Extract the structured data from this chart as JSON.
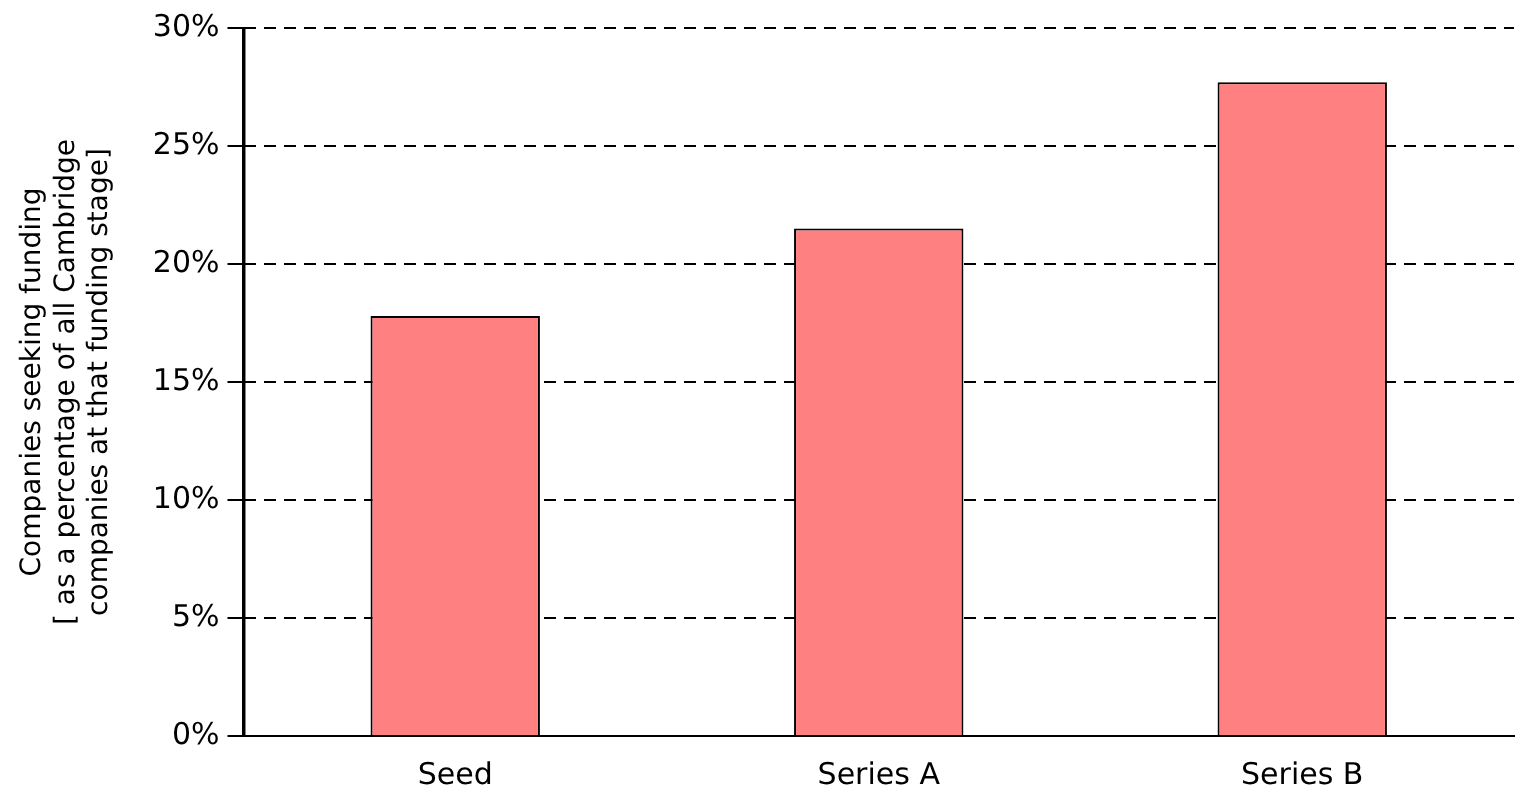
{
  "chart_data": {
    "type": "bar",
    "ylabel": "Companies seeking funding\n[ as a percentage of all Cambridge\ncompanies at that funding stage]",
    "categories": [
      "Seed",
      "Series A",
      "Series B"
    ],
    "values": [
      17.8,
      21.5,
      27.7
    ],
    "color": "#ff8080",
    "ylim": [
      0,
      30
    ],
    "yticks": [
      {
        "value": 0,
        "label": "0%"
      },
      {
        "value": 5,
        "label": "5%"
      },
      {
        "value": 10,
        "label": "10%"
      },
      {
        "value": 15,
        "label": "15%"
      },
      {
        "value": 20,
        "label": "20%"
      },
      {
        "value": 25,
        "label": "25%"
      },
      {
        "value": 30,
        "label": "30%"
      }
    ],
    "grid": "y"
  }
}
